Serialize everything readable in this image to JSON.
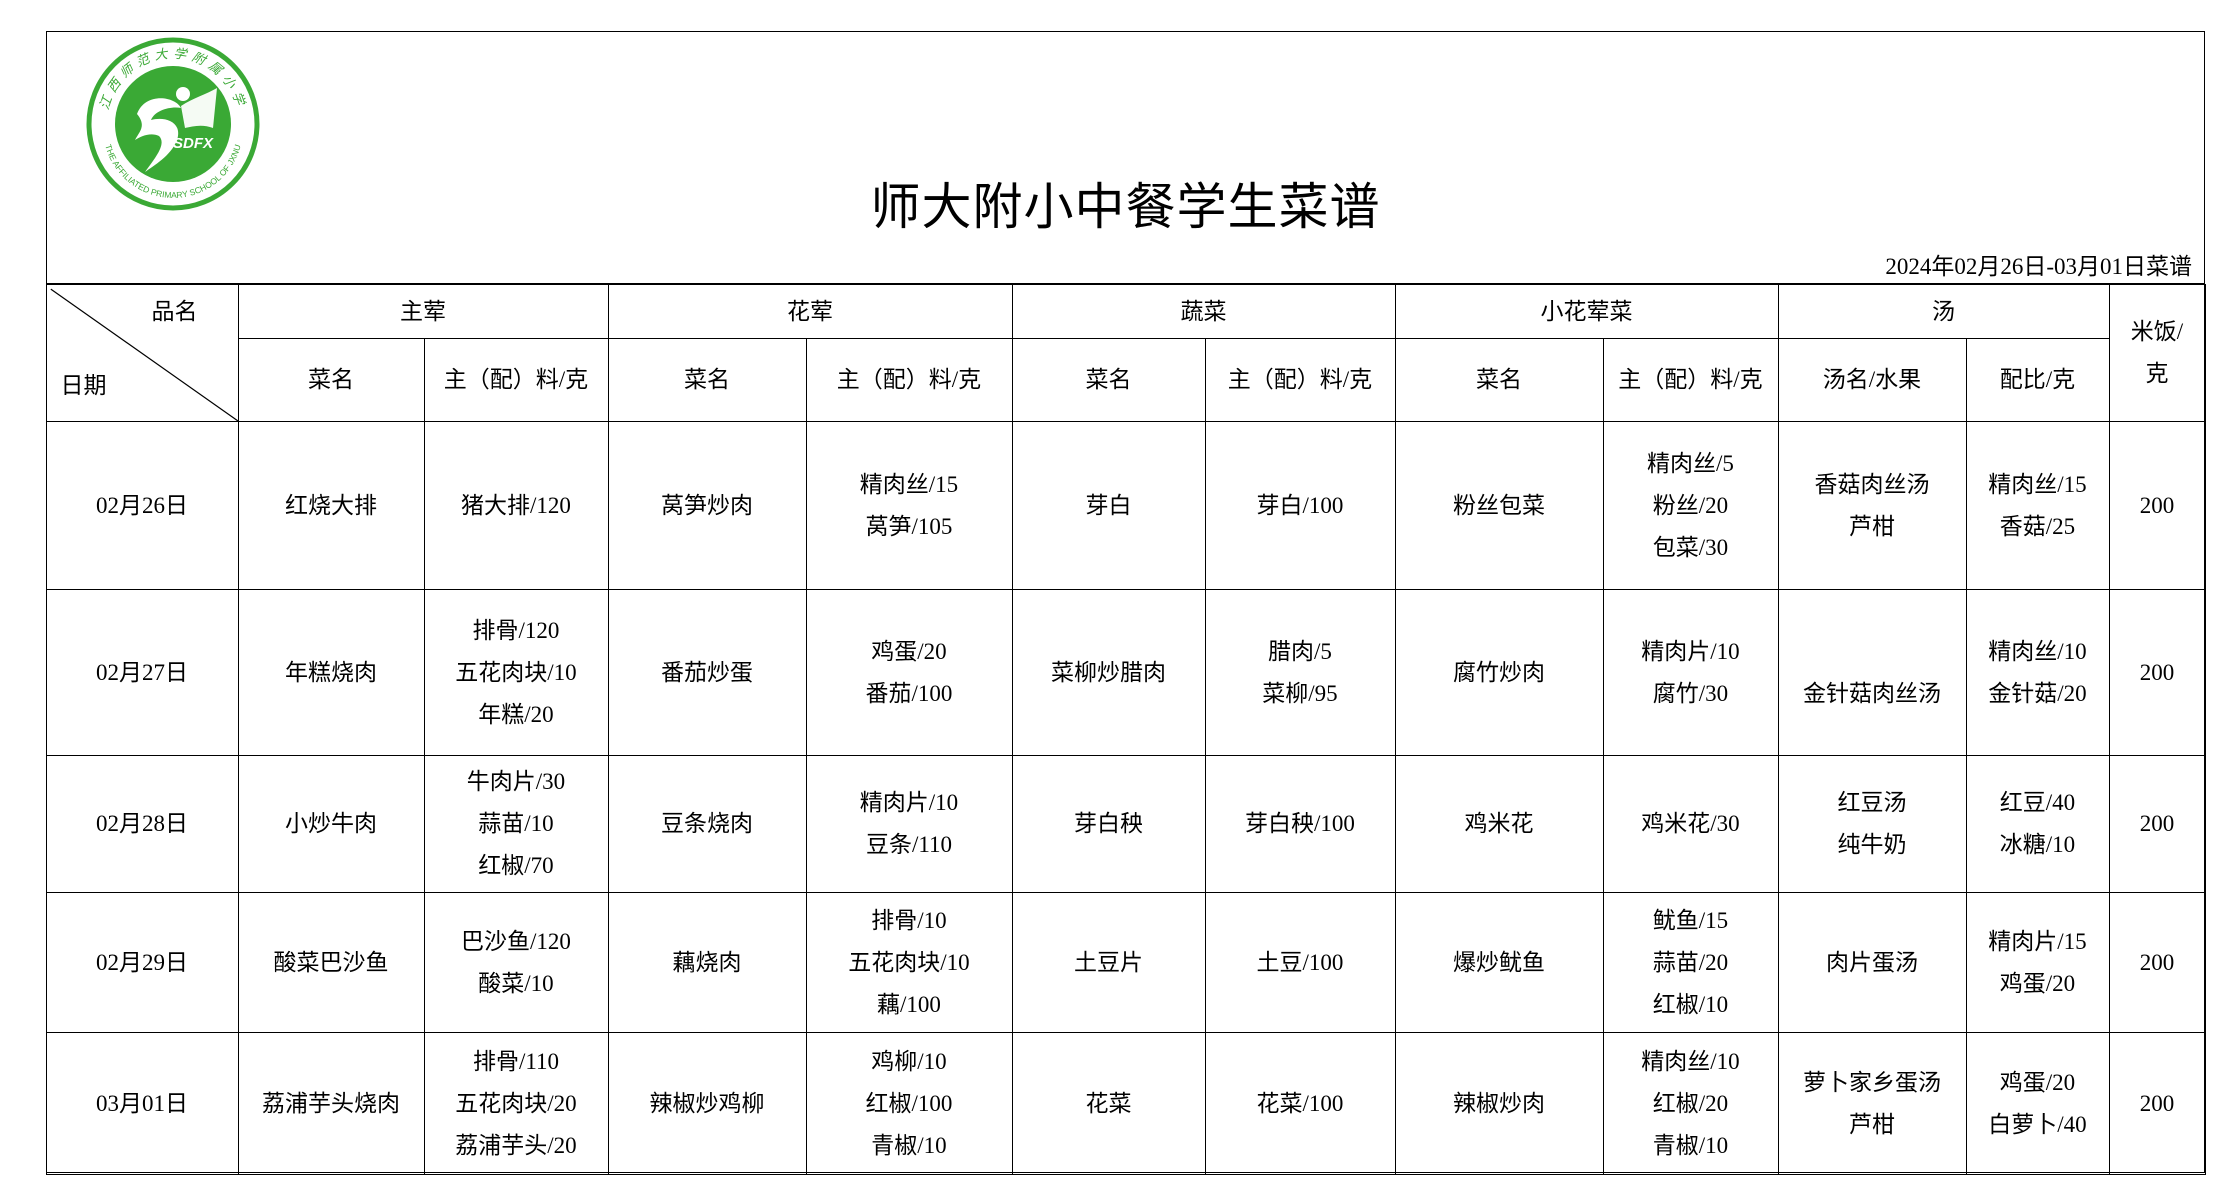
{
  "logo": {
    "ring_text_cn": "江西师范大学附属小学",
    "ring_text_en": "THE AFFILIATED PRIMARY SCHOOL OF JXNU",
    "center_text": "SDFX",
    "color": "#3aa935"
  },
  "title": "师大附小中餐学生菜谱",
  "period": "2024年02月26日-03月01日菜谱",
  "header": {
    "corner_top": "品名",
    "corner_bottom": "日期",
    "groups": [
      "主荤",
      "花荤",
      "蔬菜",
      "小花荤菜",
      "汤"
    ],
    "rice": "米饭/克",
    "sub": [
      "菜名",
      "主（配）料/克",
      "菜名",
      "主（配）料/克",
      "菜名",
      "主（配）料/克",
      "菜名",
      "主（配）料/克",
      "汤名/水果",
      "配比/克"
    ]
  },
  "rows": [
    {
      "date": "02月26日",
      "cells": [
        [
          "红烧大排"
        ],
        [
          "猪大排/120"
        ],
        [
          "莴笋炒肉"
        ],
        [
          "精肉丝/15",
          "莴笋/105"
        ],
        [
          "芽白"
        ],
        [
          "芽白/100"
        ],
        [
          "粉丝包菜"
        ],
        [
          "精肉丝/5",
          "粉丝/20",
          "包菜/30"
        ],
        [
          "香菇肉丝汤",
          "芦柑"
        ],
        [
          "精肉丝/15",
          "香菇/25"
        ]
      ],
      "rice": "200"
    },
    {
      "date": "02月27日",
      "cells": [
        [
          "年糕烧肉"
        ],
        [
          "排骨/120",
          "五花肉块/10",
          "年糕/20"
        ],
        [
          "番茄炒蛋"
        ],
        [
          "鸡蛋/20",
          "番茄/100"
        ],
        [
          "菜柳炒腊肉"
        ],
        [
          "腊肉/5",
          "菜柳/95"
        ],
        [
          "腐竹炒肉"
        ],
        [
          "精肉片/10",
          "腐竹/30"
        ],
        [
          "",
          "金针菇肉丝汤"
        ],
        [
          "精肉丝/10",
          "金针菇/20"
        ]
      ],
      "rice": "200"
    },
    {
      "date": "02月28日",
      "cells": [
        [
          "小炒牛肉"
        ],
        [
          "牛肉片/30",
          "蒜苗/10",
          "红椒/70"
        ],
        [
          "豆条烧肉"
        ],
        [
          "精肉片/10",
          "豆条/110"
        ],
        [
          "芽白秧"
        ],
        [
          "芽白秧/100"
        ],
        [
          "鸡米花"
        ],
        [
          "鸡米花/30"
        ],
        [
          "红豆汤",
          "纯牛奶"
        ],
        [
          "红豆/40",
          "冰糖/10"
        ]
      ],
      "rice": "200"
    },
    {
      "date": "02月29日",
      "cells": [
        [
          "酸菜巴沙鱼"
        ],
        [
          "巴沙鱼/120",
          "酸菜/10"
        ],
        [
          "藕烧肉"
        ],
        [
          "排骨/10",
          "五花肉块/10",
          "藕/100"
        ],
        [
          "土豆片"
        ],
        [
          "土豆/100"
        ],
        [
          "爆炒鱿鱼"
        ],
        [
          "鱿鱼/15",
          "蒜苗/20",
          "红椒/10"
        ],
        [
          "肉片蛋汤"
        ],
        [
          "精肉片/15",
          "鸡蛋/20"
        ]
      ],
      "rice": "200"
    },
    {
      "date": "03月01日",
      "cells": [
        [
          "荔浦芋头烧肉"
        ],
        [
          "排骨/110",
          "五花肉块/20",
          "荔浦芋头/20"
        ],
        [
          "辣椒炒鸡柳"
        ],
        [
          "鸡柳/10",
          "红椒/100",
          "青椒/10"
        ],
        [
          "花菜"
        ],
        [
          "花菜/100"
        ],
        [
          "辣椒炒肉"
        ],
        [
          "精肉丝/10",
          "红椒/20",
          "青椒/10"
        ],
        [
          "萝卜家乡蛋汤",
          "芦柑"
        ],
        [
          "鸡蛋/20",
          "白萝卜/40"
        ]
      ],
      "rice": "200"
    }
  ]
}
